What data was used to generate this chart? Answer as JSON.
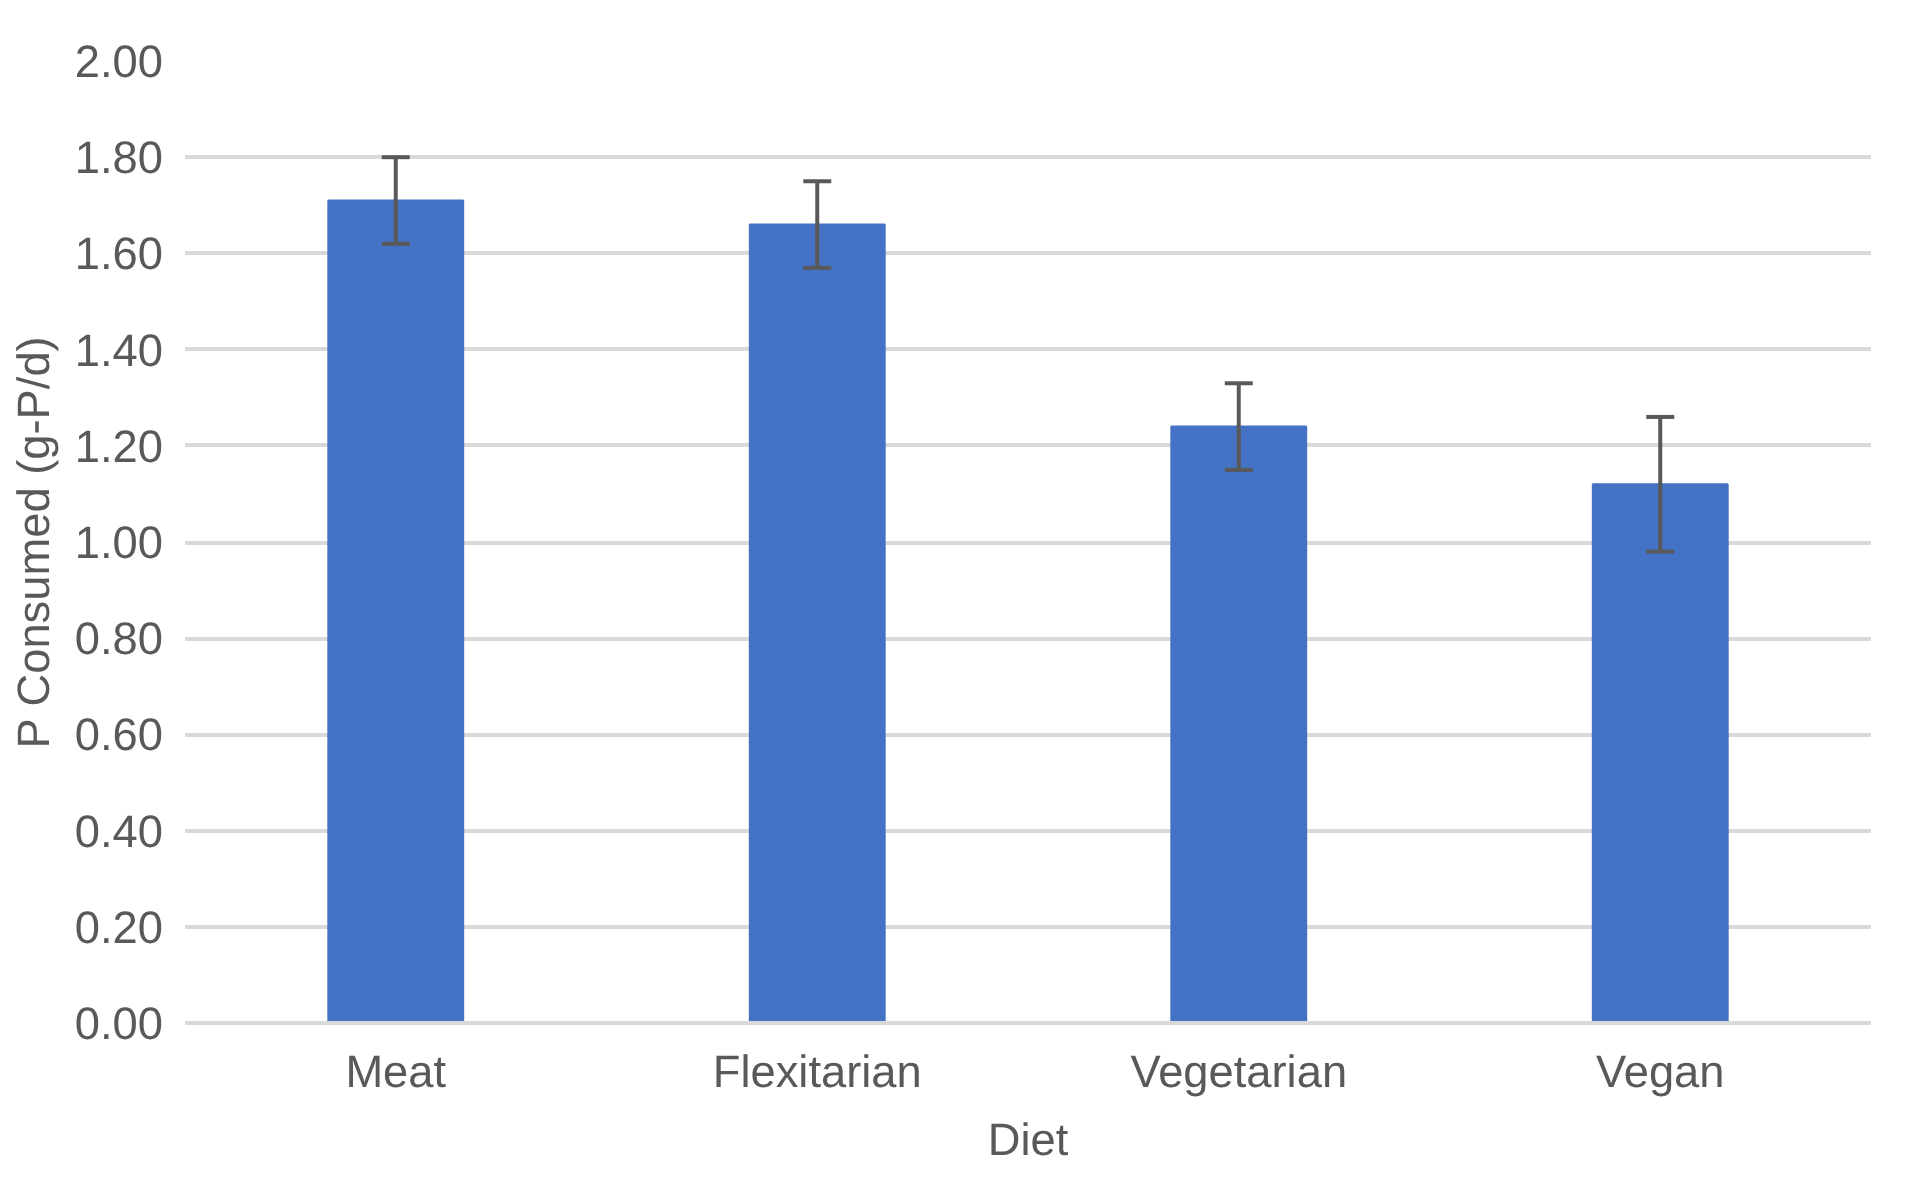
{
  "chart_data": {
    "type": "bar",
    "xlabel": "Diet",
    "ylabel": "P Consumed (g-P/d)",
    "categories": [
      "Meat",
      "Flexitarian",
      "Vegetarian",
      "Vegan"
    ],
    "values": [
      1.71,
      1.66,
      1.24,
      1.12
    ],
    "errors": [
      0.09,
      0.09,
      0.09,
      0.14
    ],
    "color": "#4472c4",
    "ylim": [
      0,
      2.0
    ],
    "yticks": [
      {
        "value": 0,
        "label": "0.00"
      },
      {
        "value": 0.2,
        "label": "0.20"
      },
      {
        "value": 0.4,
        "label": "0.40"
      },
      {
        "value": 0.6,
        "label": "0.60"
      },
      {
        "value": 0.8,
        "label": "0.80"
      },
      {
        "value": 1.0,
        "label": "1.00"
      },
      {
        "value": 1.2,
        "label": "1.20"
      },
      {
        "value": 1.4,
        "label": "1.40"
      },
      {
        "value": 1.6,
        "label": "1.60"
      },
      {
        "value": 1.8,
        "label": "1.80"
      },
      {
        "value": 2.0,
        "label": "2.00"
      }
    ],
    "grid": "y"
  }
}
